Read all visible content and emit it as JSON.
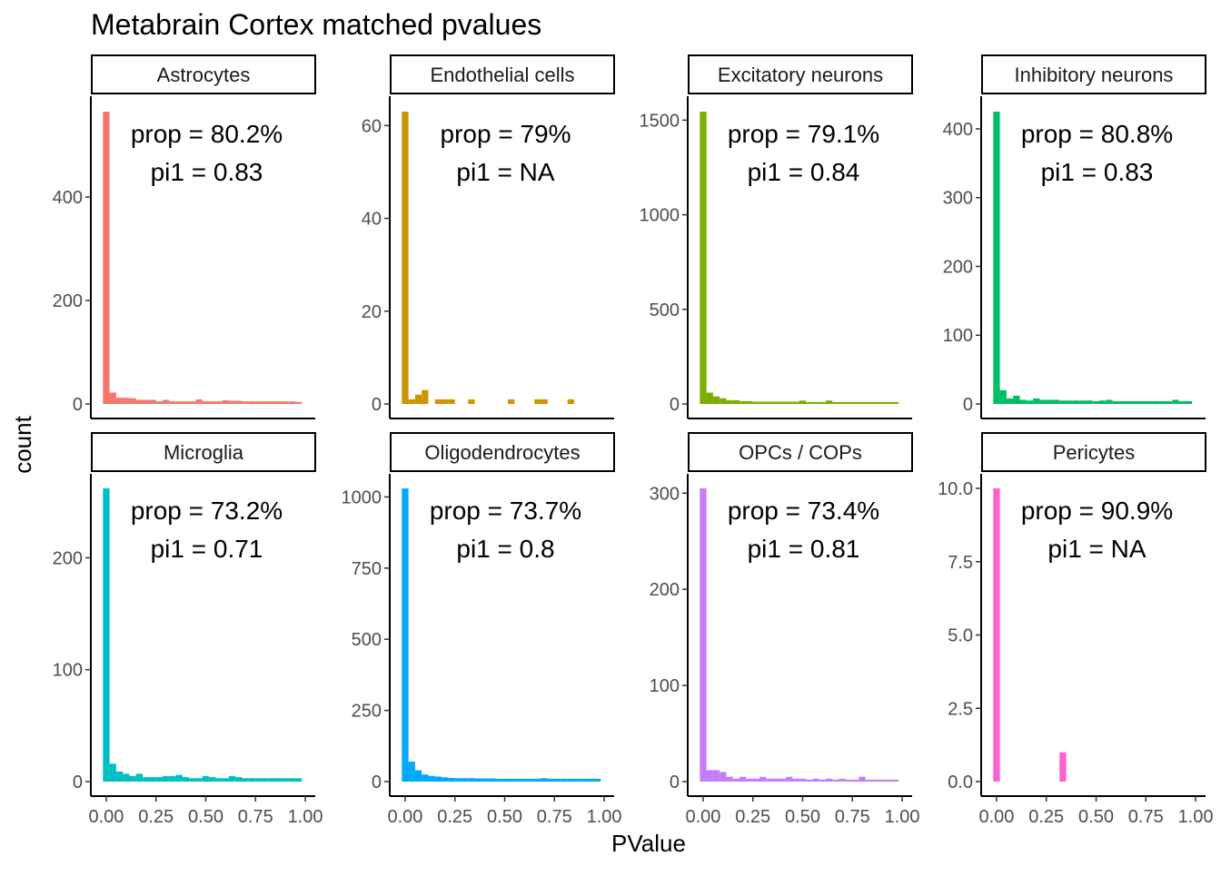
{
  "title": "Metabrain Cortex matched pvalues",
  "xlabel": "PValue",
  "ylabel": "count",
  "chart_data": {
    "type": "bar",
    "subtype": "faceted-histogram",
    "title": "Metabrain Cortex matched pvalues",
    "xlabel": "PValue",
    "ylabel": "count",
    "xlim": [
      -0.05,
      1.05
    ],
    "x_ticks": [
      "0.00",
      "0.25",
      "0.50",
      "0.75",
      "1.00"
    ],
    "bin_width": 0.0333,
    "grid": false,
    "legend": "none",
    "facets": [
      {
        "name": "Astrocytes",
        "color": "#F8766D",
        "ylim": [
          0,
          565
        ],
        "y_ticks": [
          0,
          200,
          400
        ],
        "annotation_prop": "prop = 80.2%",
        "annotation_pi1": "pi1 = 0.83",
        "values": [
          565,
          22,
          12,
          12,
          11,
          8,
          8,
          8,
          5,
          8,
          5,
          5,
          5,
          5,
          9,
          5,
          5,
          5,
          7,
          6,
          6,
          5,
          5,
          5,
          5,
          5,
          5,
          5,
          5,
          4
        ]
      },
      {
        "name": "Endothelial cells",
        "color": "#CD9600",
        "ylim": [
          0,
          63
        ],
        "y_ticks": [
          0,
          20,
          40,
          60
        ],
        "annotation_prop": "prop = 79%",
        "annotation_pi1": "pi1 = NA",
        "values": [
          63,
          1,
          2,
          3,
          0,
          1,
          1,
          1,
          0,
          0,
          1,
          0,
          0,
          0,
          0,
          0,
          1,
          0,
          0,
          0,
          1,
          1,
          0,
          0,
          0,
          1,
          0,
          0,
          0,
          0
        ]
      },
      {
        "name": "Excitatory neurons",
        "color": "#7CAE00",
        "ylim": [
          0,
          1545
        ],
        "y_ticks": [
          0,
          500,
          1000,
          1500
        ],
        "annotation_prop": "prop = 79.1%",
        "annotation_pi1": "pi1 = 0.84",
        "values": [
          1545,
          60,
          40,
          30,
          20,
          20,
          15,
          15,
          12,
          12,
          12,
          12,
          12,
          12,
          12,
          18,
          10,
          10,
          10,
          18,
          10,
          10,
          10,
          10,
          10,
          10,
          10,
          10,
          10,
          10
        ]
      },
      {
        "name": "Inhibitory neurons",
        "color": "#00BE67",
        "ylim": [
          0,
          425
        ],
        "y_ticks": [
          0,
          100,
          200,
          300,
          400
        ],
        "annotation_prop": "prop = 80.8%",
        "annotation_pi1": "pi1 = 0.83",
        "values": [
          425,
          20,
          8,
          12,
          6,
          5,
          8,
          6,
          6,
          6,
          5,
          5,
          5,
          5,
          5,
          4,
          5,
          6,
          4,
          4,
          4,
          4,
          4,
          4,
          4,
          4,
          4,
          6,
          4,
          4
        ]
      },
      {
        "name": "Microglia",
        "color": "#00BFC4",
        "ylim": [
          0,
          262
        ],
        "y_ticks": [
          0,
          100,
          200
        ],
        "annotation_prop": "prop = 73.2%",
        "annotation_pi1": "pi1 = 0.71",
        "values": [
          262,
          16,
          9,
          7,
          5,
          7,
          4,
          4,
          4,
          5,
          5,
          6,
          4,
          3,
          3,
          5,
          4,
          3,
          3,
          5,
          4,
          3,
          3,
          3,
          3,
          3,
          3,
          3,
          3,
          3
        ]
      },
      {
        "name": "Oligodendrocytes",
        "color": "#00A9FF",
        "ylim": [
          0,
          1030
        ],
        "y_ticks": [
          0,
          250,
          500,
          750,
          1000
        ],
        "annotation_prop": "prop = 73.7%",
        "annotation_pi1": "pi1 = 0.8",
        "values": [
          1030,
          70,
          40,
          25,
          20,
          18,
          15,
          13,
          12,
          12,
          12,
          11,
          11,
          11,
          10,
          10,
          10,
          10,
          10,
          10,
          10,
          12,
          10,
          10,
          10,
          10,
          10,
          10,
          10,
          10
        ]
      },
      {
        "name": "OPCs / COPs",
        "color": "#C77CFF",
        "ylim": [
          0,
          305
        ],
        "y_ticks": [
          0,
          100,
          200,
          300
        ],
        "annotation_prop": "prop = 73.4%",
        "annotation_pi1": "pi1 = 0.81",
        "values": [
          305,
          12,
          12,
          10,
          5,
          3,
          5,
          3,
          3,
          5,
          3,
          3,
          3,
          5,
          3,
          3,
          2,
          3,
          2,
          3,
          2,
          3,
          2,
          2,
          5,
          2,
          2,
          2,
          2,
          2
        ]
      },
      {
        "name": "Pericytes",
        "color": "#FF61CC",
        "ylim": [
          0,
          10
        ],
        "y_ticks": [
          "0.0",
          "2.5",
          "5.0",
          "7.5",
          "10.0"
        ],
        "annotation_prop": "prop = 90.9%",
        "annotation_pi1": "pi1 = NA",
        "values": [
          10,
          0,
          0,
          0,
          0,
          0,
          0,
          0,
          0,
          0,
          1,
          0,
          0,
          0,
          0,
          0,
          0,
          0,
          0,
          0,
          0,
          0,
          0,
          0,
          0,
          0,
          0,
          0,
          0,
          0
        ]
      }
    ]
  }
}
